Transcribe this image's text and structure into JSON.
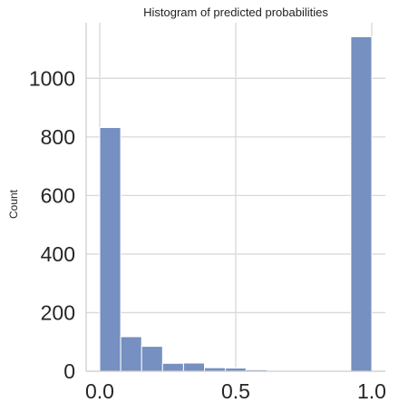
{
  "chart_data": {
    "type": "bar",
    "title": "Histogram of predicted probabilities",
    "xlabel": "",
    "ylabel": "Count",
    "xlim": [
      -0.05,
      1.05
    ],
    "ylim": [
      0,
      1190
    ],
    "xticks": [
      0.0,
      0.5,
      1.0
    ],
    "xtick_labels": [
      "0.0",
      "0.5",
      "1.0"
    ],
    "yticks": [
      0,
      200,
      400,
      600,
      800,
      1000
    ],
    "ytick_labels": [
      "0",
      "200",
      "400",
      "600",
      "800",
      "1000"
    ],
    "grid": true,
    "bar_color": "#7590c1",
    "bins": [
      {
        "x0": 0.0,
        "x1": 0.077,
        "count": 832
      },
      {
        "x0": 0.077,
        "x1": 0.154,
        "count": 118
      },
      {
        "x0": 0.154,
        "x1": 0.231,
        "count": 85
      },
      {
        "x0": 0.231,
        "x1": 0.308,
        "count": 27
      },
      {
        "x0": 0.308,
        "x1": 0.385,
        "count": 28
      },
      {
        "x0": 0.385,
        "x1": 0.462,
        "count": 12
      },
      {
        "x0": 0.462,
        "x1": 0.538,
        "count": 11
      },
      {
        "x0": 0.538,
        "x1": 0.615,
        "count": 5
      },
      {
        "x0": 0.615,
        "x1": 0.692,
        "count": 2
      },
      {
        "x0": 0.692,
        "x1": 0.769,
        "count": 1
      },
      {
        "x0": 0.769,
        "x1": 0.846,
        "count": 1
      },
      {
        "x0": 0.846,
        "x1": 0.923,
        "count": 1
      },
      {
        "x0": 0.923,
        "x1": 1.0,
        "count": 1142
      }
    ]
  }
}
